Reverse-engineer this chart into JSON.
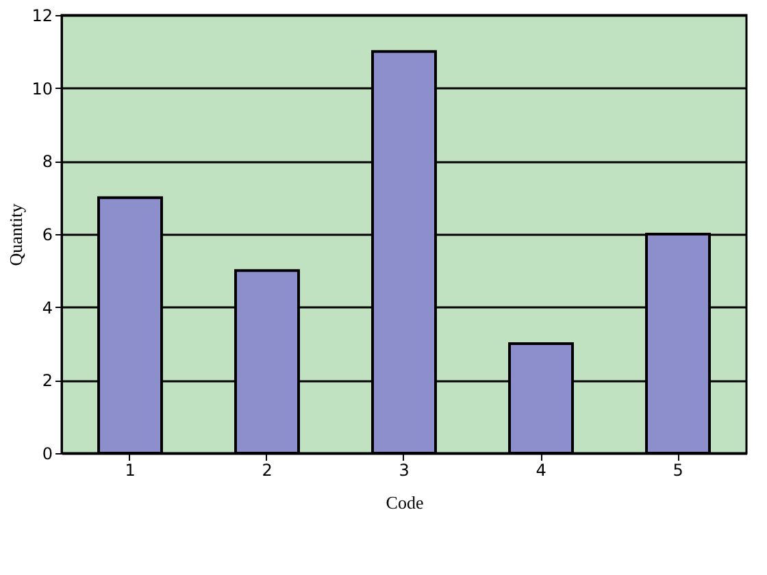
{
  "chart_data": {
    "type": "bar",
    "xlabel": "Code",
    "ylabel": "Quantity",
    "categories": [
      "1",
      "2",
      "3",
      "4",
      "5"
    ],
    "values": [
      7,
      5,
      11,
      3,
      6
    ],
    "color": "#8c8fcc",
    "ylim": [
      0,
      12
    ],
    "yticks": [
      0,
      2,
      4,
      6,
      8,
      10,
      12
    ],
    "grid": "y"
  }
}
